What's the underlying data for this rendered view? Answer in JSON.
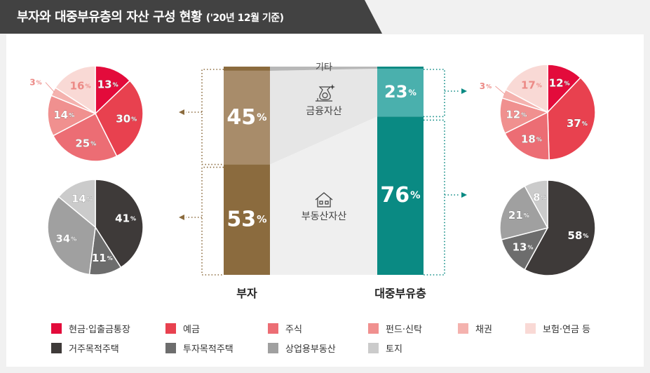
{
  "title": {
    "main": "부자와 대중부유층의 자산 구성 현황",
    "note": "('20년 12월 기준)"
  },
  "colors": {
    "banner": "#424242",
    "rich_financial": "#a88c6a",
    "rich_realestate": "#8b6b3e",
    "mass_financial": "#4ab0ad",
    "mass_realestate": "#0a8a83",
    "other_bar": "#b8b8b8",
    "flow_light": "#e6e6e6",
    "flow_lighter": "#efefef"
  },
  "center": {
    "other_label": "기타",
    "financial_label": "금융자산",
    "realestate_label": "부동산자산",
    "icons": [
      "money-bag-icon",
      "house-icon"
    ],
    "rich_label": "부자",
    "mass_label": "대중부유층"
  },
  "chart_data": [
    {
      "type": "bar",
      "title": "",
      "categories": [
        "부자",
        "대중부유층"
      ],
      "series": [
        {
          "name": "금융자산",
          "values": [
            45,
            23
          ]
        },
        {
          "name": "부동산자산",
          "values": [
            53,
            76
          ]
        },
        {
          "name": "기타",
          "values": [
            2,
            1
          ]
        }
      ],
      "unit": "%",
      "stacked": true
    },
    {
      "type": "pie",
      "group": "부자 금융자산",
      "labels": [
        "현금·입출금통장",
        "예금",
        "주식",
        "펀드·신탁",
        "채권",
        "보험·연금 등"
      ],
      "values": [
        13,
        30,
        25,
        14,
        3,
        16
      ],
      "colors": [
        "#e30b3b",
        "#e8414f",
        "#ec6d74",
        "#f0908f",
        "#f4b2ae",
        "#f9d9d5"
      ]
    },
    {
      "type": "pie",
      "group": "부자 부동산자산",
      "labels": [
        "거주목적주택",
        "투자목적주택",
        "상업용부동산",
        "토지"
      ],
      "values": [
        41,
        11,
        34,
        14
      ],
      "colors": [
        "#3e3a39",
        "#6d6d6d",
        "#a0a0a0",
        "#cbcbcb"
      ]
    },
    {
      "type": "pie",
      "group": "대중부유층 금융자산",
      "labels": [
        "현금·입출금통장",
        "예금",
        "주식",
        "펀드·신탁",
        "채권",
        "보험·연금 등"
      ],
      "values": [
        12,
        37,
        18,
        12,
        3,
        17
      ],
      "colors": [
        "#e30b3b",
        "#e8414f",
        "#ec6d74",
        "#f0908f",
        "#f4b2ae",
        "#f9d9d5"
      ]
    },
    {
      "type": "pie",
      "group": "대중부유층 부동산자산",
      "labels": [
        "거주목적주택",
        "투자목적주택",
        "상업용부동산",
        "토지"
      ],
      "values": [
        58,
        13,
        21,
        8
      ],
      "colors": [
        "#3e3a39",
        "#6d6d6d",
        "#a0a0a0",
        "#cbcbcb"
      ]
    }
  ],
  "legend": [
    {
      "label": "현금·입출금통장",
      "color": "#e30b3b"
    },
    {
      "label": "예금",
      "color": "#e8414f"
    },
    {
      "label": "주식",
      "color": "#ec6d74"
    },
    {
      "label": "펀드·신탁",
      "color": "#f0908f"
    },
    {
      "label": "채권",
      "color": "#f4b2ae"
    },
    {
      "label": "보험·연금 등",
      "color": "#f9d9d5"
    },
    {
      "label": "거주목적주택",
      "color": "#3e3a39"
    },
    {
      "label": "투자목적주택",
      "color": "#6d6d6d"
    },
    {
      "label": "상업용부동산",
      "color": "#a0a0a0"
    },
    {
      "label": "토지",
      "color": "#cbcbcb"
    }
  ]
}
